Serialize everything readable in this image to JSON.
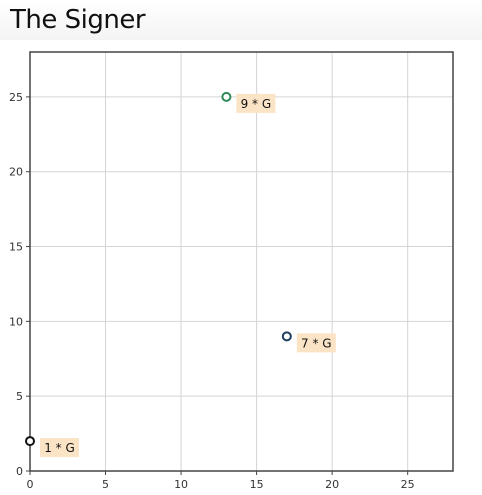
{
  "page": {
    "title": "The Signer"
  },
  "chart_data": {
    "type": "scatter",
    "title": "",
    "xlabel": "",
    "ylabel": "",
    "xlim": [
      0,
      28
    ],
    "ylim": [
      0,
      28
    ],
    "x_ticks": [
      0,
      5,
      10,
      15,
      20,
      25
    ],
    "y_ticks": [
      0,
      5,
      10,
      15,
      20,
      25
    ],
    "grid": true,
    "label_background": "#fbe3c5",
    "points": [
      {
        "x": 0,
        "y": 2,
        "label": "1 * G",
        "color": "#111111"
      },
      {
        "x": 13,
        "y": 25,
        "label": "9 * G",
        "color": "#2e8b57"
      },
      {
        "x": 17,
        "y": 9,
        "label": "7 * G",
        "color": "#1f3f5f"
      }
    ]
  }
}
